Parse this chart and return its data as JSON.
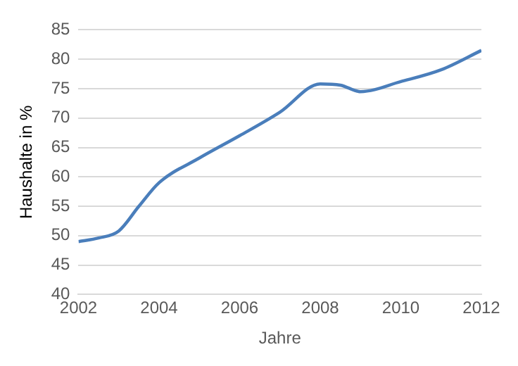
{
  "chart_data": {
    "type": "line",
    "xlabel": "Jahre",
    "ylabel": "Haushalte in %",
    "x": [
      2002,
      2002.5,
      2003,
      2003.5,
      2004,
      2005,
      2006,
      2007,
      2008,
      2008.5,
      2009,
      2010,
      2011,
      2012
    ],
    "series": [
      {
        "color": "#4a7ebb",
        "values": [
          49,
          49.6,
          50.8,
          55,
          59,
          63.2,
          67,
          71,
          75.8,
          75.6,
          74.5,
          76.2,
          78.2,
          81.5
        ]
      }
    ],
    "xlim": [
      2002,
      2012
    ],
    "xticks": [
      2002,
      2004,
      2006,
      2008,
      2010,
      2012
    ],
    "ylim": [
      40,
      85
    ],
    "yticks": [
      40,
      45,
      50,
      55,
      60,
      65,
      70,
      75,
      80,
      85
    ],
    "grid": "y",
    "legend": false,
    "marker": "none",
    "line_style": "solid"
  }
}
